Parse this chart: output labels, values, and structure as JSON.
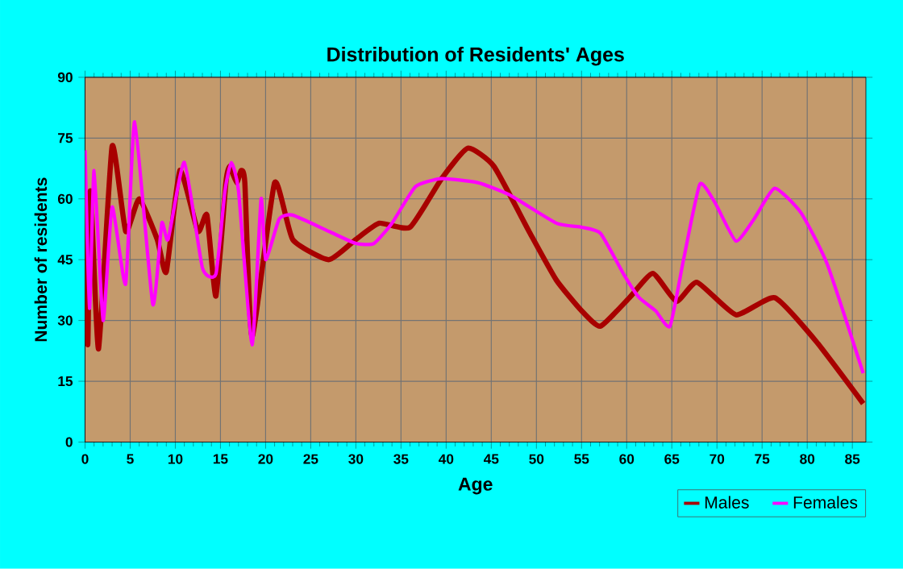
{
  "chart_data": {
    "type": "line",
    "title": "Distribution of Residents' Ages",
    "xlabel": "Age",
    "ylabel": "Number of residents",
    "xlim": [
      0,
      86.5
    ],
    "ylim": [
      0,
      90
    ],
    "xticks": [
      0,
      5,
      10,
      15,
      20,
      25,
      30,
      35,
      40,
      45,
      50,
      55,
      60,
      65,
      70,
      75,
      80,
      85
    ],
    "yticks": [
      0,
      15,
      30,
      45,
      60,
      75,
      90
    ],
    "grid": true,
    "legend": "bottom right",
    "marker": "none",
    "line_style": "solid",
    "series": [
      {
        "name": "Males",
        "color": "#a80000",
        "x": [
          0,
          0.3,
          0.6,
          1.5,
          3,
          4.5,
          6,
          8,
          9,
          10.5,
          12.5,
          13.5,
          14.5,
          15.6,
          16,
          16.8,
          17.3,
          17.7,
          18.5,
          21,
          23,
          27,
          30,
          32.6,
          36,
          39.5,
          42.4,
          45.3,
          49.3,
          52.2,
          55,
          57.1,
          60.3,
          62.9,
          65.5,
          67.8,
          72.1,
          76.4,
          81,
          86.2
        ],
        "values": [
          62,
          24,
          62,
          23,
          73,
          52,
          60,
          50,
          42,
          67,
          52,
          56,
          36,
          64,
          68,
          64,
          67,
          64,
          26,
          64,
          50,
          45,
          50,
          54,
          53,
          65,
          72.5,
          68,
          51.5,
          40,
          32.4,
          28.6,
          35.6,
          41.6,
          34.7,
          39.4,
          31.4,
          35.6,
          24.8,
          9.5
        ]
      },
      {
        "name": "Females",
        "color": "#ff00ff",
        "x": [
          0,
          0.5,
          1,
          2,
          3,
          4.5,
          5.5,
          7.5,
          8.5,
          9.2,
          11,
          13,
          14.5,
          15.5,
          16.2,
          17,
          18.5,
          19.5,
          20,
          21.5,
          23,
          27,
          30,
          32,
          34,
          36.6,
          39.5,
          43.5,
          47,
          52.2,
          55,
          57.1,
          59.7,
          61.4,
          63.2,
          64.8,
          66.3,
          68.1,
          69.8,
          72.1,
          74.1,
          76.4,
          79.3,
          82.2,
          86.2
        ],
        "values": [
          72,
          33,
          67,
          30,
          58,
          39,
          79,
          34,
          54,
          50,
          69,
          43,
          41.5,
          62,
          69,
          62,
          24,
          60,
          45,
          55,
          56,
          52,
          49,
          49,
          54,
          63,
          65,
          64,
          61,
          54,
          53,
          51.5,
          41.3,
          35.6,
          32.4,
          28.6,
          45,
          63.6,
          59,
          49.6,
          55,
          62.6,
          56.6,
          44,
          17
        ]
      }
    ]
  }
}
